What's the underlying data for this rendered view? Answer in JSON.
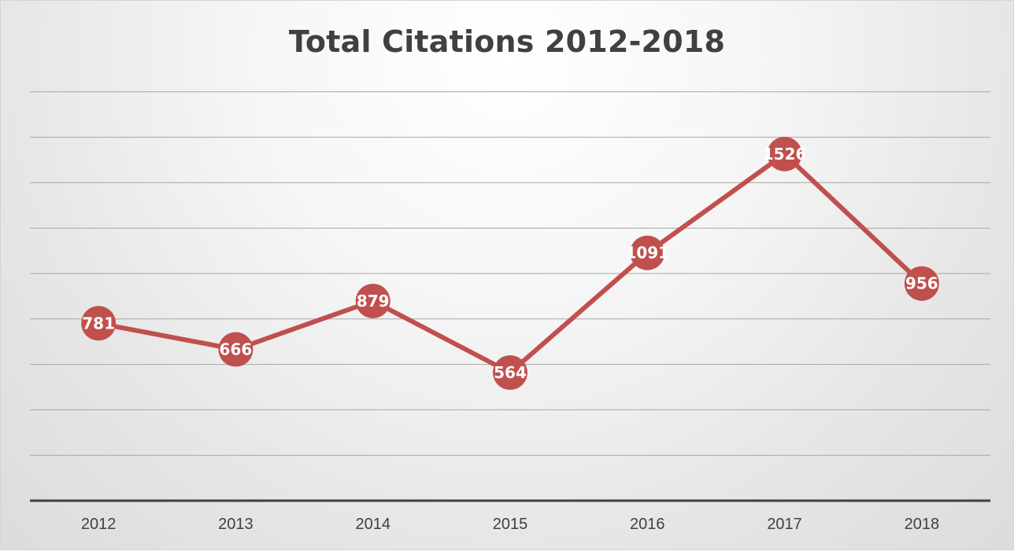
{
  "chart_data": {
    "type": "line",
    "title": "Total Citations 2012-2018",
    "xlabel": "",
    "ylabel": "",
    "categories": [
      "2012",
      "2013",
      "2014",
      "2015",
      "2016",
      "2017",
      "2018"
    ],
    "series": [
      {
        "values": [
          781,
          666,
          879,
          564,
          1091,
          1526,
          956
        ],
        "color": "#c0504d"
      }
    ],
    "ylim": [
      0,
      2000
    ],
    "y_gridline_step": 200,
    "grid": true,
    "legend": "none",
    "data_labels": true,
    "y_tick_labels_shown": false,
    "colors": {
      "line": "#c0504d",
      "gridline": "#a6a6a6",
      "axis": "#404040",
      "text": "#404040",
      "label_text": "#ffffff"
    }
  }
}
